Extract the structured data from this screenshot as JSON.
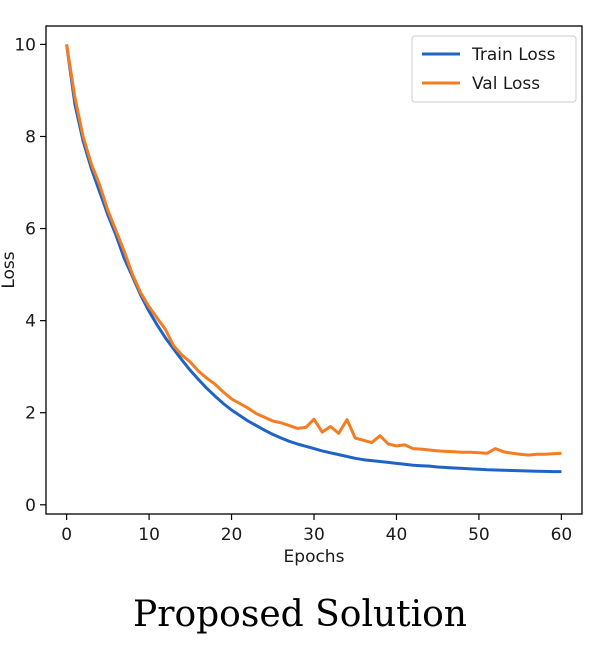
{
  "figure": {
    "caption": "Proposed Solution"
  },
  "chart_data": {
    "type": "line",
    "title": "",
    "xlabel": "Epochs",
    "ylabel": "Loss",
    "xlim": [
      -2.5,
      62.5
    ],
    "ylim": [
      -0.2,
      10.4
    ],
    "xticks": [
      0,
      10,
      20,
      30,
      40,
      50,
      60
    ],
    "yticks": [
      0,
      2,
      4,
      6,
      8,
      10
    ],
    "grid": false,
    "legend_position": "top-right",
    "x": [
      0,
      1,
      2,
      3,
      4,
      5,
      6,
      7,
      8,
      9,
      10,
      11,
      12,
      13,
      14,
      15,
      16,
      17,
      18,
      19,
      20,
      21,
      22,
      23,
      24,
      25,
      26,
      27,
      28,
      29,
      30,
      31,
      32,
      33,
      34,
      35,
      36,
      37,
      38,
      39,
      40,
      41,
      42,
      43,
      44,
      45,
      46,
      47,
      48,
      49,
      50,
      51,
      52,
      53,
      54,
      55,
      56,
      57,
      58,
      59,
      60
    ],
    "series": [
      {
        "name": "Train Loss",
        "color": "#1f63c6",
        "values": [
          10.0,
          8.7,
          7.9,
          7.3,
          6.8,
          6.3,
          5.85,
          5.35,
          4.95,
          4.55,
          4.2,
          3.9,
          3.62,
          3.38,
          3.14,
          2.92,
          2.72,
          2.53,
          2.36,
          2.2,
          2.06,
          1.94,
          1.82,
          1.72,
          1.62,
          1.53,
          1.45,
          1.38,
          1.32,
          1.27,
          1.22,
          1.17,
          1.13,
          1.09,
          1.05,
          1.01,
          0.98,
          0.96,
          0.94,
          0.92,
          0.9,
          0.88,
          0.86,
          0.85,
          0.84,
          0.82,
          0.81,
          0.8,
          0.79,
          0.78,
          0.77,
          0.76,
          0.755,
          0.75,
          0.745,
          0.74,
          0.735,
          0.73,
          0.725,
          0.72,
          0.72
        ]
      },
      {
        "name": "Val Loss",
        "color": "#f57c20",
        "values": [
          10.0,
          8.85,
          8.0,
          7.4,
          6.95,
          6.4,
          5.95,
          5.5,
          5.0,
          4.6,
          4.3,
          4.05,
          3.8,
          3.45,
          3.25,
          3.1,
          2.9,
          2.75,
          2.62,
          2.45,
          2.3,
          2.2,
          2.1,
          1.98,
          1.9,
          1.82,
          1.78,
          1.72,
          1.66,
          1.68,
          1.86,
          1.58,
          1.7,
          1.55,
          1.85,
          1.45,
          1.4,
          1.35,
          1.5,
          1.32,
          1.28,
          1.3,
          1.22,
          1.21,
          1.19,
          1.17,
          1.16,
          1.15,
          1.14,
          1.14,
          1.13,
          1.12,
          1.22,
          1.15,
          1.12,
          1.1,
          1.08,
          1.1,
          1.1,
          1.11,
          1.12
        ]
      }
    ]
  }
}
